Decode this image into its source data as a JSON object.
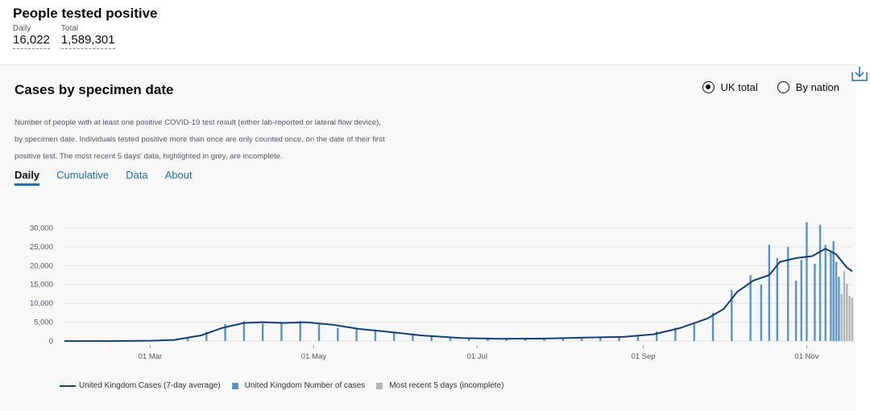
{
  "header": {
    "title": "People tested positive",
    "daily_label": "Daily",
    "daily_value": "16,022",
    "total_label": "Total",
    "total_value": "1,589,301"
  },
  "card": {
    "title": "Cases by specimen date",
    "radio_options": [
      {
        "label": "UK total",
        "selected": true
      },
      {
        "label": "By nation",
        "selected": false
      }
    ],
    "download_icon": "download-icon",
    "description_lines": [
      "Number of people with at least one positive COVID-19 test result (either lab-reported or lateral flow device),",
      "by specimen date. Individuals tested positive more than once are only counted once, on the date of their first",
      "positive test. The most recent 5 days' data, highlighted in grey, are incomplete."
    ],
    "tabs": [
      {
        "label": "Daily",
        "active": true
      },
      {
        "label": "Cumulative",
        "active": false
      },
      {
        "label": "Data",
        "active": false
      },
      {
        "label": "About",
        "active": false
      }
    ]
  },
  "colors": {
    "bar": "#5694ca",
    "incomplete_bar": "#b1b4b6",
    "line": "#12407f",
    "grid": "#e3e3e3",
    "tab_accent": "#1d70b8"
  },
  "chart_data": {
    "type": "bar",
    "x_axis_ticks": [
      "01 Mar",
      "01 May",
      "01 Jul",
      "01 Sep",
      "01 Nov"
    ],
    "x_range": [
      "2020-01-29",
      "2020-11-18"
    ],
    "y_ticks": [
      0,
      5000,
      10000,
      15000,
      20000,
      25000,
      30000
    ],
    "y_tick_labels": [
      "0",
      "5,000",
      "10,000",
      "15,000",
      "20,000",
      "25,000",
      "30,000"
    ],
    "ylim": [
      0,
      32000
    ],
    "grid": true,
    "legend_position": "bottom-left",
    "series": [
      {
        "name": "United Kingdom Cases (7-day average)",
        "kind": "line",
        "points": [
          [
            "2020-01-29",
            0
          ],
          [
            "2020-02-15",
            10
          ],
          [
            "2020-03-01",
            80
          ],
          [
            "2020-03-10",
            300
          ],
          [
            "2020-03-20",
            1500
          ],
          [
            "2020-03-28",
            3500
          ],
          [
            "2020-04-05",
            4800
          ],
          [
            "2020-04-12",
            5000
          ],
          [
            "2020-04-20",
            4800
          ],
          [
            "2020-04-28",
            5000
          ],
          [
            "2020-05-08",
            4300
          ],
          [
            "2020-05-18",
            3200
          ],
          [
            "2020-05-28",
            2500
          ],
          [
            "2020-06-10",
            1500
          ],
          [
            "2020-06-25",
            800
          ],
          [
            "2020-07-10",
            600
          ],
          [
            "2020-07-25",
            650
          ],
          [
            "2020-08-10",
            900
          ],
          [
            "2020-08-25",
            1100
          ],
          [
            "2020-09-05",
            1800
          ],
          [
            "2020-09-15",
            3500
          ],
          [
            "2020-09-25",
            6000
          ],
          [
            "2020-10-01",
            8500
          ],
          [
            "2020-10-06",
            13000
          ],
          [
            "2020-10-12",
            16000
          ],
          [
            "2020-10-18",
            17500
          ],
          [
            "2020-10-22",
            21000
          ],
          [
            "2020-10-28",
            22000
          ],
          [
            "2020-11-03",
            22500
          ],
          [
            "2020-11-08",
            24500
          ],
          [
            "2020-11-12",
            23000
          ],
          [
            "2020-11-16",
            19500
          ],
          [
            "2020-11-18",
            18500
          ]
        ]
      },
      {
        "name": "United Kingdom Number of cases",
        "kind": "bar",
        "points": [
          [
            "2020-03-01",
            80
          ],
          [
            "2020-03-08",
            300
          ],
          [
            "2020-03-15",
            1000
          ],
          [
            "2020-03-22",
            2500
          ],
          [
            "2020-03-29",
            4500
          ],
          [
            "2020-04-05",
            5300
          ],
          [
            "2020-04-12",
            4600
          ],
          [
            "2020-04-19",
            5000
          ],
          [
            "2020-04-26",
            5300
          ],
          [
            "2020-05-03",
            4400
          ],
          [
            "2020-05-10",
            3500
          ],
          [
            "2020-05-17",
            3200
          ],
          [
            "2020-05-24",
            2800
          ],
          [
            "2020-05-31",
            2200
          ],
          [
            "2020-06-07",
            1600
          ],
          [
            "2020-06-14",
            1200
          ],
          [
            "2020-06-21",
            900
          ],
          [
            "2020-06-28",
            700
          ],
          [
            "2020-07-05",
            600
          ],
          [
            "2020-07-12",
            600
          ],
          [
            "2020-07-19",
            650
          ],
          [
            "2020-07-26",
            700
          ],
          [
            "2020-08-02",
            800
          ],
          [
            "2020-08-09",
            900
          ],
          [
            "2020-08-16",
            1000
          ],
          [
            "2020-08-23",
            1100
          ],
          [
            "2020-08-30",
            1300
          ],
          [
            "2020-09-06",
            2500
          ],
          [
            "2020-09-13",
            3500
          ],
          [
            "2020-09-20",
            4500
          ],
          [
            "2020-09-27",
            7500
          ],
          [
            "2020-10-04",
            13500
          ],
          [
            "2020-10-11",
            17500
          ],
          [
            "2020-10-15",
            15000
          ],
          [
            "2020-10-18",
            25500
          ],
          [
            "2020-10-21",
            22000
          ],
          [
            "2020-10-25",
            25000
          ],
          [
            "2020-10-28",
            16000
          ],
          [
            "2020-10-30",
            21500
          ],
          [
            "2020-11-01",
            31500
          ],
          [
            "2020-11-04",
            20500
          ],
          [
            "2020-11-06",
            30800
          ],
          [
            "2020-11-08",
            25500
          ],
          [
            "2020-11-10",
            24000
          ],
          [
            "2020-11-11",
            26500
          ],
          [
            "2020-11-12",
            21000
          ],
          [
            "2020-11-13",
            17000
          ]
        ]
      },
      {
        "name": "Most recent 5 days (incomplete)",
        "kind": "bar",
        "points": [
          [
            "2020-11-14",
            12500
          ],
          [
            "2020-11-15",
            18500
          ],
          [
            "2020-11-16",
            15200
          ],
          [
            "2020-11-17",
            12000
          ],
          [
            "2020-11-18",
            11500
          ]
        ]
      }
    ]
  }
}
